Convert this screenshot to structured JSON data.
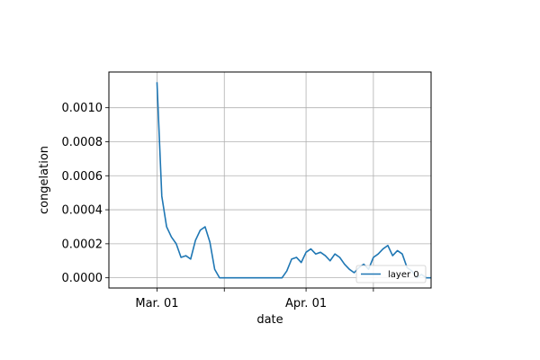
{
  "chart_data": {
    "type": "line",
    "xlabel": "date",
    "ylabel": "congelation",
    "xlim": [
      "2024-02-20",
      "2024-04-27"
    ],
    "ylim": [
      -6e-05,
      0.00121
    ],
    "grid": true,
    "legend_placement": "lower-right",
    "x_ticks": [
      {
        "date": "2024-03-01",
        "label": "Mar. 01"
      },
      {
        "date": "2024-03-15",
        "label": ""
      },
      {
        "date": "2024-04-01",
        "label": "Apr. 01"
      },
      {
        "date": "2024-04-15",
        "label": ""
      }
    ],
    "y_ticks": [
      {
        "value": 0,
        "label": "0.0000"
      },
      {
        "value": 0.0002,
        "label": "0.0002"
      },
      {
        "value": 0.0004,
        "label": "0.0004"
      },
      {
        "value": 0.0006,
        "label": "0.0006"
      },
      {
        "value": 0.0008,
        "label": "0.0008"
      },
      {
        "value": 0.001,
        "label": "0.0010"
      }
    ],
    "series": [
      {
        "name": "layer 0",
        "color": "#1f77b4",
        "x": [
          "2024-03-01",
          "2024-03-02",
          "2024-03-03",
          "2024-03-04",
          "2024-03-05",
          "2024-03-06",
          "2024-03-07",
          "2024-03-08",
          "2024-03-09",
          "2024-03-10",
          "2024-03-11",
          "2024-03-12",
          "2024-03-13",
          "2024-03-14",
          "2024-03-15",
          "2024-03-16",
          "2024-03-17",
          "2024-03-18",
          "2024-03-19",
          "2024-03-20",
          "2024-03-21",
          "2024-03-22",
          "2024-03-23",
          "2024-03-24",
          "2024-03-25",
          "2024-03-26",
          "2024-03-27",
          "2024-03-28",
          "2024-03-29",
          "2024-03-30",
          "2024-03-31",
          "2024-04-01",
          "2024-04-02",
          "2024-04-03",
          "2024-04-04",
          "2024-04-05",
          "2024-04-06",
          "2024-04-07",
          "2024-04-08",
          "2024-04-09",
          "2024-04-10",
          "2024-04-11",
          "2024-04-12",
          "2024-04-13",
          "2024-04-14",
          "2024-04-15",
          "2024-04-16",
          "2024-04-17",
          "2024-04-18",
          "2024-04-19",
          "2024-04-20",
          "2024-04-21",
          "2024-04-22",
          "2024-04-23",
          "2024-04-24",
          "2024-04-25",
          "2024-04-26",
          "2024-04-27"
        ],
        "values": [
          0.00115,
          0.00048,
          0.0003,
          0.00024,
          0.0002,
          0.00012,
          0.00013,
          0.00011,
          0.00022,
          0.00028,
          0.0003,
          0.00021,
          5e-05,
          0.0,
          0.0,
          0.0,
          0.0,
          0.0,
          0.0,
          0.0,
          0.0,
          0.0,
          0.0,
          0.0,
          0.0,
          0.0,
          0.0,
          4e-05,
          0.00011,
          0.00012,
          9e-05,
          0.00015,
          0.00017,
          0.00014,
          0.00015,
          0.00013,
          0.0001,
          0.00014,
          0.00012,
          8e-05,
          5e-05,
          3e-05,
          6e-05,
          8e-05,
          5e-05,
          0.00012,
          0.00014,
          0.00017,
          0.00019,
          0.00013,
          0.00016,
          0.00014,
          6e-05,
          4e-05,
          0.0,
          2e-05,
          0.0,
          0.0
        ]
      }
    ]
  }
}
